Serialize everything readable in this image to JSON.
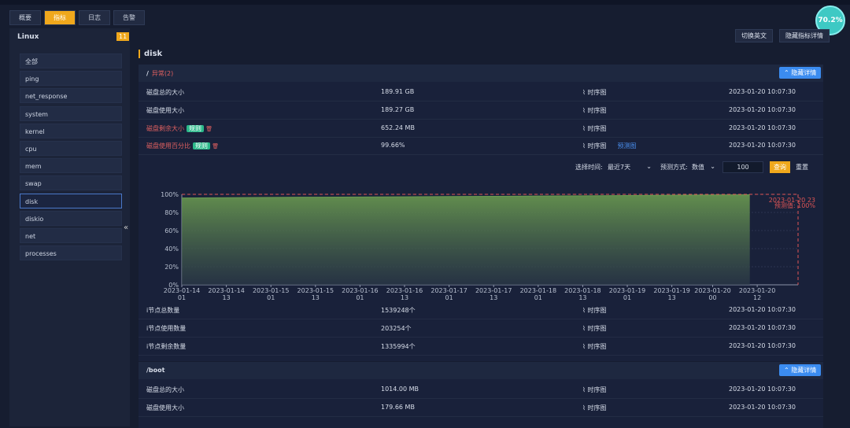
{
  "tabs": [
    "概要",
    "指标",
    "日志",
    "告警"
  ],
  "gauge": "70.2%",
  "sidebar": {
    "title": "Linux",
    "badge": "11",
    "items": [
      "全部",
      "ping",
      "net_response",
      "system",
      "kernel",
      "cpu",
      "mem",
      "swap",
      "disk",
      "diskio",
      "net",
      "processes"
    ]
  },
  "toolbar": [
    "切换英文",
    "隐藏指标详情"
  ],
  "section_title": "disk",
  "groups": [
    {
      "name": "/",
      "status": "异常(2)",
      "toggle": "隐藏详情",
      "rows": [
        {
          "label": "磁盘总的大小",
          "value": "189.91 GB",
          "link": "时序图",
          "time": "2023-01-20 10:07:30"
        },
        {
          "label": "磁盘使用大小",
          "value": "189.27 GB",
          "link": "时序图",
          "time": "2023-01-20 10:07:30"
        },
        {
          "label": "磁盘剩余大小",
          "tag": "规则",
          "alert": true,
          "value": "652.24 MB",
          "link": "时序图",
          "time": "2023-01-20 10:07:30"
        },
        {
          "label": "磁盘使用百分比",
          "tag": "规则",
          "alert": true,
          "value": "99.66%",
          "link": "时序图",
          "extra_link": "预测图",
          "time": "2023-01-20 10:07:30"
        }
      ],
      "rows_after": [
        {
          "label": "i节点总数量",
          "value": "1539248个",
          "link": "时序图",
          "time": "2023-01-20 10:07:30"
        },
        {
          "label": "i节点使用数量",
          "value": "203254个",
          "link": "时序图",
          "time": "2023-01-20 10:07:30"
        },
        {
          "label": "i节点剩余数量",
          "value": "1335994个",
          "link": "时序图",
          "time": "2023-01-20 10:07:30"
        }
      ]
    },
    {
      "name": "/boot",
      "toggle": "隐藏详情",
      "rows": [
        {
          "label": "磁盘总的大小",
          "value": "1014.00 MB",
          "link": "时序图",
          "time": "2023-01-20 10:07:30"
        },
        {
          "label": "磁盘使用大小",
          "value": "179.66 MB",
          "link": "时序图",
          "time": "2023-01-20 10:07:30"
        }
      ]
    }
  ],
  "controls": {
    "time_label": "选择时间:",
    "time_value": "最近7天",
    "method_label": "预测方式:",
    "method_value": "数值",
    "input": "100",
    "query": "查询",
    "reset": "重置"
  },
  "chart_data": {
    "type": "area",
    "color": "#6a9a50",
    "x": [
      "2023-01-14 01",
      "2023-01-14 13",
      "2023-01-15 01",
      "2023-01-15 13",
      "2023-01-16 01",
      "2023-01-16 13",
      "2023-01-17 01",
      "2023-01-17 13",
      "2023-01-18 01",
      "2023-01-18 13",
      "2023-01-19 01",
      "2023-01-19 13",
      "2023-01-20 00",
      "2023-01-20 10"
    ],
    "values": [
      96,
      96.3,
      96.6,
      96.9,
      97.1,
      97.3,
      97.6,
      97.8,
      98.1,
      98.4,
      98.7,
      99,
      99.3,
      99.6
    ],
    "xlim": [
      "2023-01-14 01",
      "2023-01-20 23"
    ],
    "xticks": [
      "2023-01-14 01",
      "2023-01-14 13",
      "2023-01-15 01",
      "2023-01-15 13",
      "2023-01-16 01",
      "2023-01-16 13",
      "2023-01-17 01",
      "2023-01-17 13",
      "2023-01-18 01",
      "2023-01-18 13",
      "2023-01-19 01",
      "2023-01-19 13",
      "2023-01-20 00",
      "2023-01-20 12"
    ],
    "ylim": [
      0,
      100
    ],
    "yticks": [
      {
        "value": 0,
        "label": "0%"
      },
      {
        "value": 20,
        "label": "20%"
      },
      {
        "value": 40,
        "label": "40%"
      },
      {
        "value": 60,
        "label": "60%"
      },
      {
        "value": 80,
        "label": "80%"
      },
      {
        "value": 100,
        "label": "100%"
      }
    ],
    "annotation": {
      "x": "2023-01-20 23",
      "value": 100,
      "label": "预测值: 100%",
      "color": "#e05555"
    }
  }
}
